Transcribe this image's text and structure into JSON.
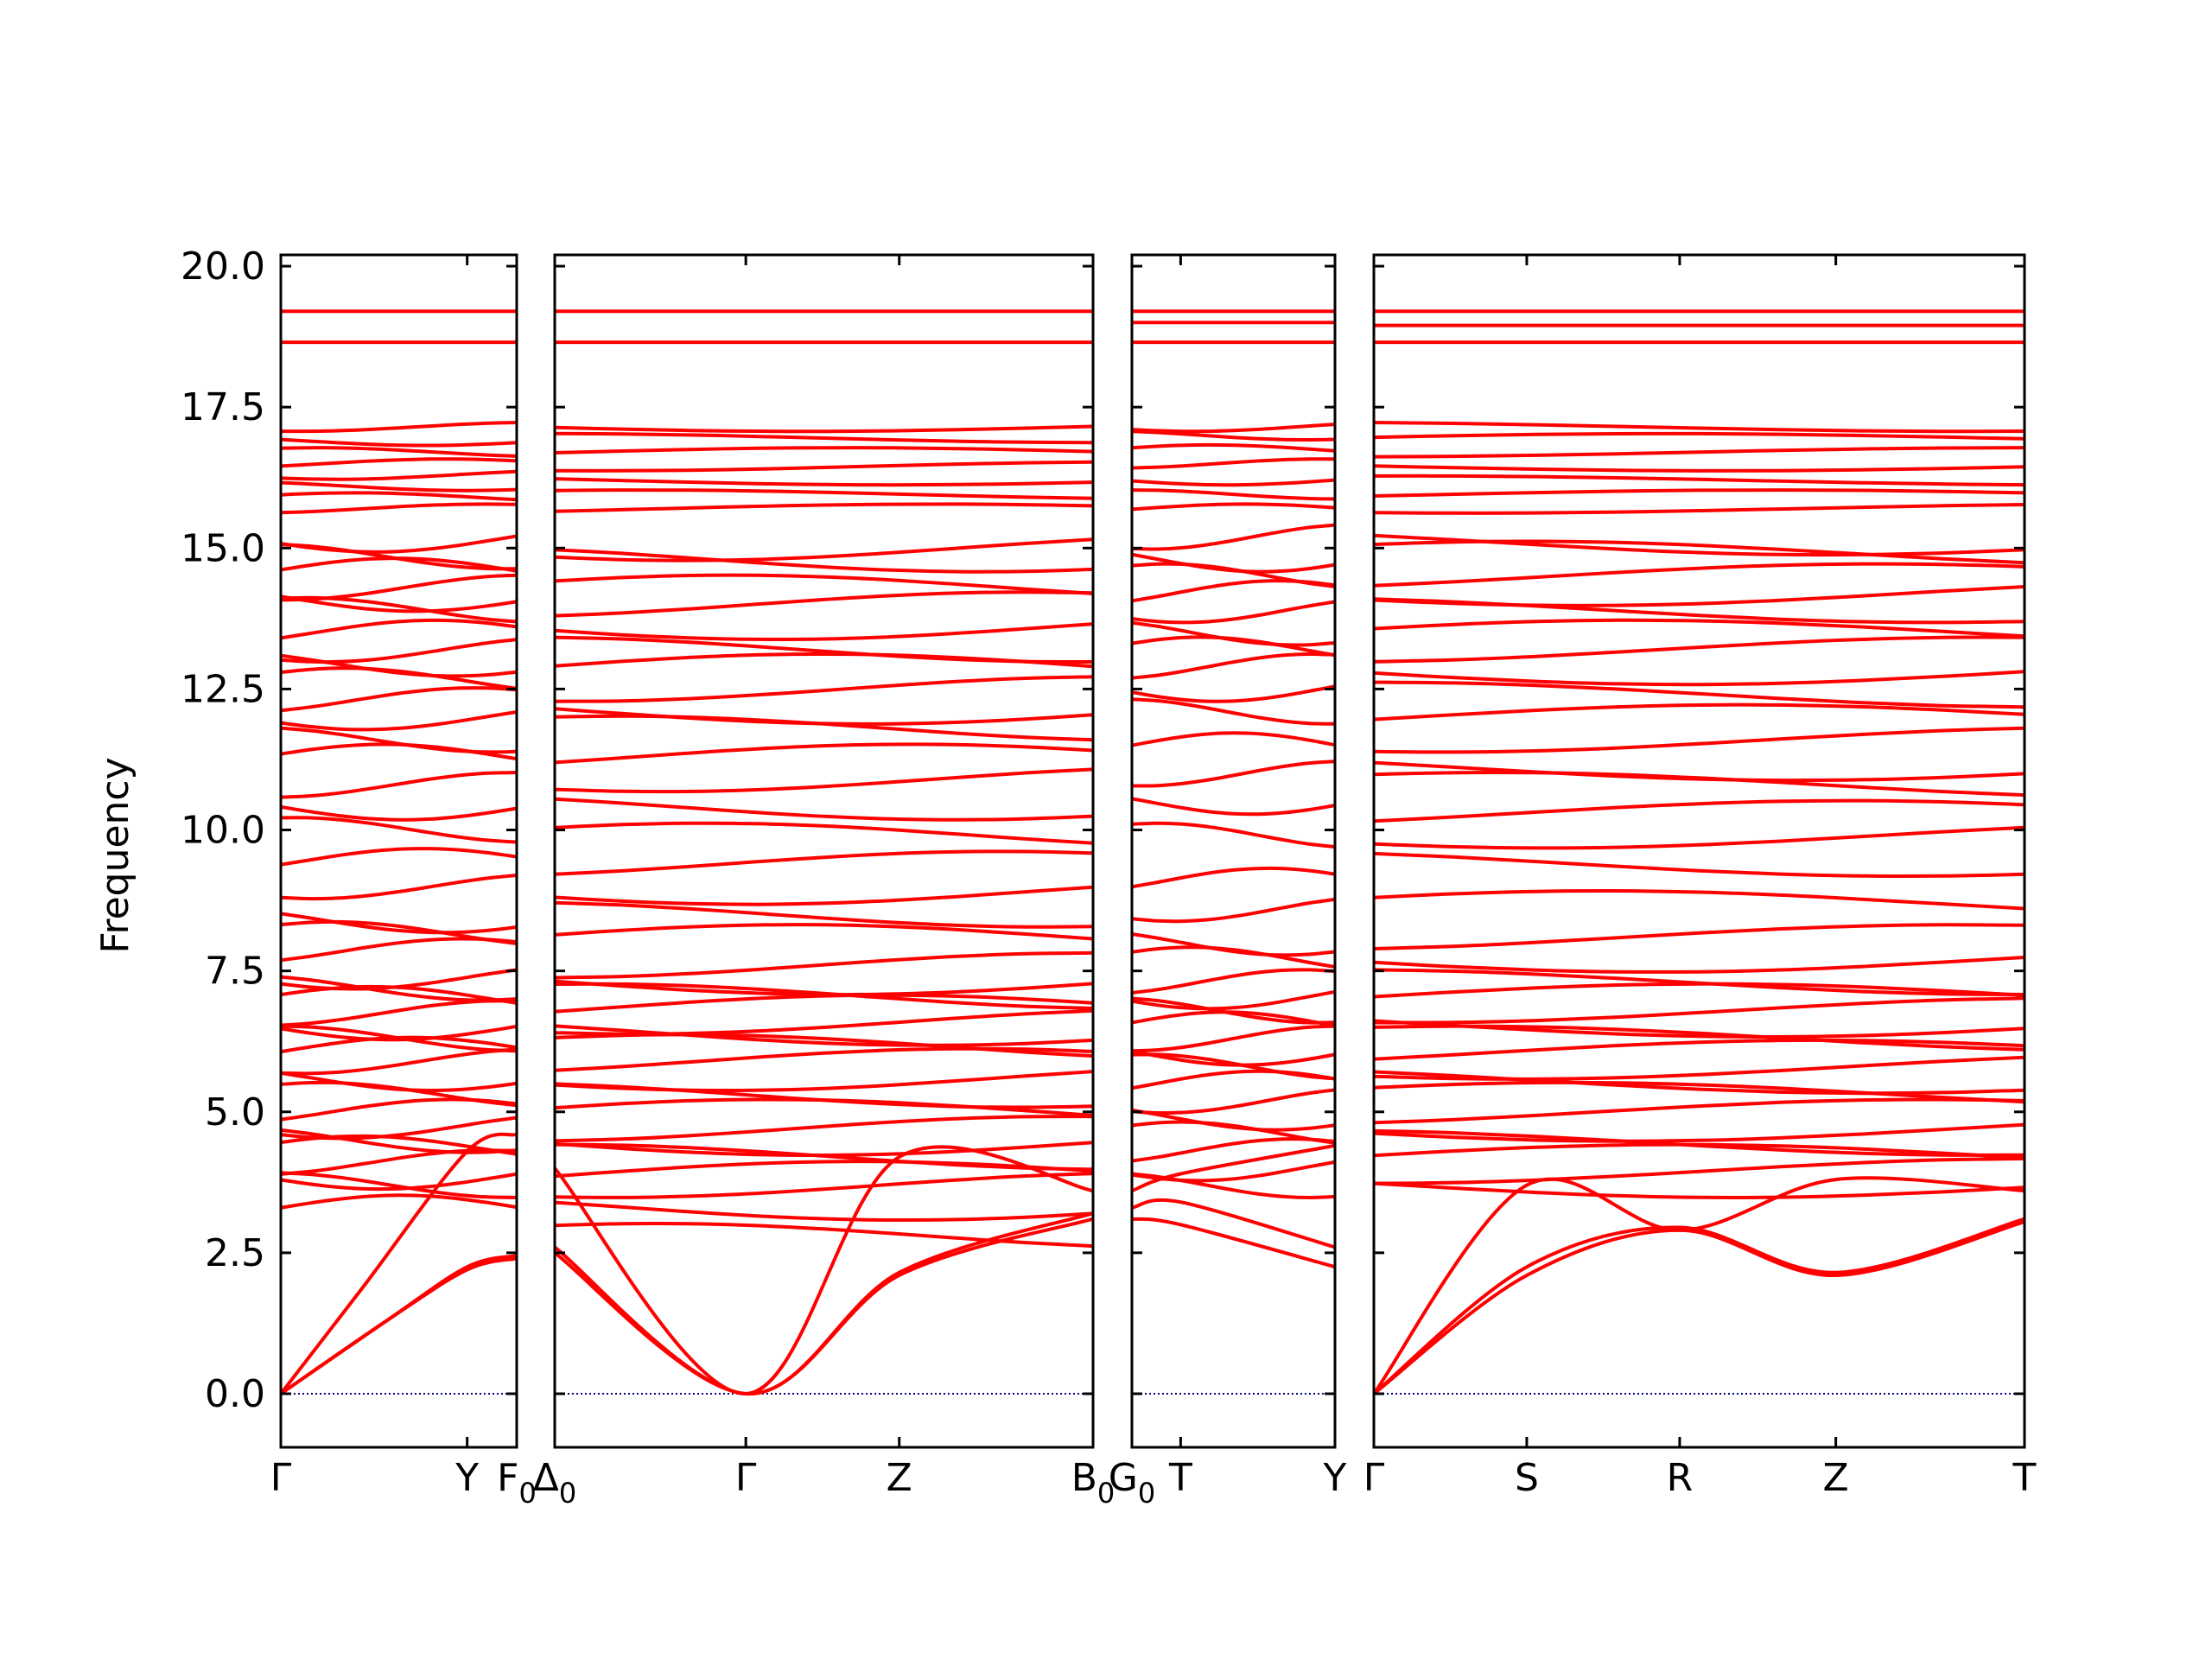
{
  "chart_data": {
    "type": "line",
    "title": "",
    "xlabel": "",
    "ylabel": "Frequency",
    "ylim": [
      -0.95,
      20.2
    ],
    "y_ticks": [
      0.0,
      2.5,
      5.0,
      7.5,
      10.0,
      12.5,
      15.0,
      17.5,
      20.0
    ],
    "y_tick_labels": [
      "0.0",
      "2.5",
      "5.0",
      "7.5",
      "10.0",
      "12.5",
      "15.0",
      "17.5",
      "20.0"
    ],
    "grid": false,
    "zero_line_color": "#00008b",
    "band_color": "#ff0000",
    "segments": [
      {
        "name": "segment-1",
        "k_ticks": [
          0,
          0.79,
          1.0
        ],
        "k_labels": [
          "Γ",
          "Y",
          "F0"
        ],
        "bands_note": "dense set of optical branches",
        "acoustic": [
          [
            [
              0,
              0
            ],
            [
              0.35,
              1.9
            ],
            [
              0.79,
              4.3
            ],
            [
              1.0,
              4.6
            ]
          ],
          [
            [
              0,
              0
            ],
            [
              0.45,
              1.3
            ],
            [
              0.79,
              2.2
            ],
            [
              1.0,
              2.4
            ]
          ],
          [
            [
              0,
              0
            ],
            [
              0.45,
              1.3
            ],
            [
              0.79,
              2.25
            ],
            [
              1.0,
              2.45
            ]
          ]
        ],
        "flat_levels": [
          3.3,
          3.7,
          3.85,
          4.1,
          4.35,
          4.5,
          4.75,
          5.0,
          5.3,
          5.6,
          5.9,
          6.1,
          6.3,
          6.5,
          6.75,
          7.0,
          7.2,
          7.4,
          7.85,
          8.15,
          8.4,
          9.0,
          9.45,
          10.0,
          10.4,
          10.8,
          11.3,
          11.6,
          12.0,
          12.3,
          12.65,
          12.95,
          13.2,
          13.5,
          13.9,
          14.1,
          14.3,
          14.6,
          14.85,
          15.15,
          15.7,
          15.9,
          16.1,
          16.3,
          16.5,
          16.7,
          16.9,
          17.15,
          18.65,
          19.2
        ]
      },
      {
        "name": "segment-2",
        "k_ticks": [
          0,
          0.355,
          0.64,
          1.0
        ],
        "k_labels": [
          "Δ0",
          "Γ",
          "Z",
          "B0"
        ],
        "acoustic": [
          [
            [
              0,
              2.5
            ],
            [
              0.355,
              0
            ],
            [
              0.64,
              2.1
            ],
            [
              1.0,
              3.1
            ]
          ],
          [
            [
              0,
              2.6
            ],
            [
              0.355,
              0
            ],
            [
              0.64,
              2.15
            ],
            [
              1.0,
              3.2
            ]
          ],
          [
            [
              0,
              4.0
            ],
            [
              0.355,
              0
            ],
            [
              0.64,
              4.2
            ],
            [
              1.0,
              3.6
            ]
          ]
        ],
        "flat_levels": [
          2.8,
          3.3,
          3.7,
          3.9,
          4.2,
          4.45,
          4.7,
          5.0,
          5.3,
          5.6,
          5.9,
          6.15,
          6.4,
          6.6,
          6.85,
          7.05,
          7.3,
          7.6,
          8.1,
          8.5,
          8.9,
          9.4,
          9.9,
          10.4,
          10.9,
          11.3,
          11.8,
          12.1,
          12.5,
          12.9,
          13.2,
          13.6,
          14.0,
          14.3,
          14.8,
          15.0,
          15.7,
          15.95,
          16.2,
          16.45,
          16.7,
          16.95,
          17.15,
          18.65,
          19.2
        ]
      },
      {
        "name": "segment-3",
        "k_ticks": [
          0,
          0.24,
          1.0
        ],
        "k_labels": [
          "G0",
          "T",
          "Y"
        ],
        "acoustic": [
          [
            [
              0,
              3.1
            ],
            [
              0.24,
              3.0
            ],
            [
              1.0,
              2.25
            ]
          ],
          [
            [
              0,
              3.3
            ],
            [
              0.24,
              3.4
            ],
            [
              1.0,
              2.6
            ]
          ],
          [
            [
              0,
              3.6
            ],
            [
              0.24,
              3.9
            ],
            [
              1.0,
              4.4
            ]
          ]
        ],
        "flat_levels": [
          3.7,
          4.0,
          4.3,
          4.6,
          4.9,
          5.2,
          5.5,
          5.8,
          6.05,
          6.3,
          6.55,
          6.8,
          7.05,
          7.3,
          7.7,
          8.0,
          8.6,
          9.1,
          9.9,
          10.5,
          11.0,
          11.5,
          12.1,
          12.5,
          12.9,
          13.2,
          13.5,
          13.9,
          14.2,
          14.5,
          14.8,
          15.2,
          15.7,
          15.95,
          16.2,
          16.5,
          16.75,
          17.0,
          17.15,
          18.65,
          19.0,
          19.2
        ]
      },
      {
        "name": "segment-4",
        "k_ticks": [
          0,
          0.235,
          0.47,
          0.71,
          1.0
        ],
        "k_labels": [
          "Γ",
          "S",
          "R",
          "Z",
          "T"
        ],
        "acoustic": [
          [
            [
              0,
              0
            ],
            [
              0.235,
              2.1
            ],
            [
              0.47,
              2.9
            ],
            [
              0.71,
              2.1
            ],
            [
              1.0,
              3.05
            ]
          ],
          [
            [
              0,
              0
            ],
            [
              0.235,
              2.25
            ],
            [
              0.47,
              2.95
            ],
            [
              0.71,
              2.15
            ],
            [
              1.0,
              3.1
            ]
          ],
          [
            [
              0,
              0
            ],
            [
              0.235,
              3.7
            ],
            [
              0.47,
              2.9
            ],
            [
              0.71,
              3.8
            ],
            [
              1.0,
              3.6
            ]
          ]
        ],
        "flat_levels": [
          3.7,
          3.95,
          4.2,
          4.45,
          4.7,
          5.0,
          5.3,
          5.55,
          5.8,
          6.05,
          6.3,
          6.55,
          6.8,
          7.05,
          7.3,
          7.7,
          8.1,
          8.7,
          9.4,
          9.9,
          10.3,
          10.8,
          11.1,
          11.6,
          12.0,
          12.4,
          12.8,
          13.2,
          13.5,
          13.9,
          14.2,
          14.5,
          14.9,
          15.1,
          15.7,
          15.95,
          16.2,
          16.45,
          16.7,
          16.95,
          17.15,
          18.65,
          18.95,
          19.2
        ]
      }
    ]
  }
}
